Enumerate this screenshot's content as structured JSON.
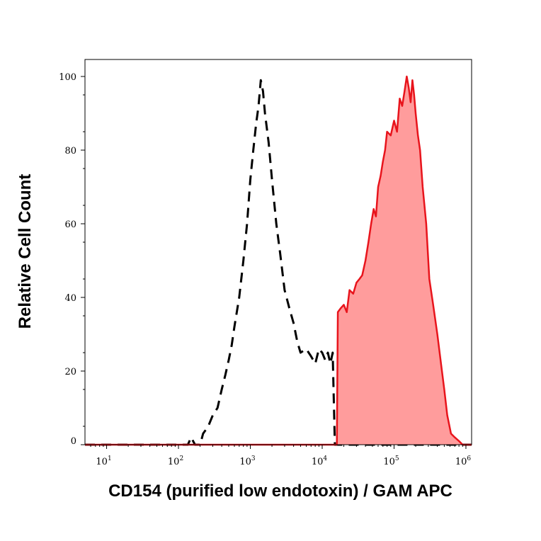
{
  "chart_data": {
    "type": "area",
    "title": "",
    "xlabel": "CD154 (purified low endotoxin) / GAM APC",
    "ylabel": "Relative Cell Count",
    "x_scale": "log",
    "xlim": [
      5,
      1200000
    ],
    "ylim": [
      0,
      105
    ],
    "x_ticks": [
      {
        "base": "10",
        "exp": "1",
        "value": 10
      },
      {
        "base": "10",
        "exp": "2",
        "value": 100
      },
      {
        "base": "10",
        "exp": "3",
        "value": 1000
      },
      {
        "base": "10",
        "exp": "4",
        "value": 10000
      },
      {
        "base": "10",
        "exp": "5",
        "value": 100000
      },
      {
        "base": "10",
        "exp": "6",
        "value": 1000000
      }
    ],
    "y_ticks": [
      {
        "label": "0",
        "value": 0
      },
      {
        "label": "20",
        "value": 20
      },
      {
        "label": "40",
        "value": 40
      },
      {
        "label": "60",
        "value": 60
      },
      {
        "label": "80",
        "value": 80
      },
      {
        "label": "100",
        "value": 100
      }
    ],
    "grid": false,
    "legend": "none",
    "series": [
      {
        "style": "dashed",
        "color": "#000000",
        "fill": "none",
        "points": [
          [
            5,
            0
          ],
          [
            100,
            0
          ],
          [
            135,
            0
          ],
          [
            150,
            2
          ],
          [
            170,
            0
          ],
          [
            200,
            0
          ],
          [
            220,
            3
          ],
          [
            260,
            5
          ],
          [
            300,
            8
          ],
          [
            350,
            10
          ],
          [
            400,
            15
          ],
          [
            450,
            19
          ],
          [
            500,
            23
          ],
          [
            550,
            27
          ],
          [
            600,
            32
          ],
          [
            700,
            40
          ],
          [
            800,
            50
          ],
          [
            900,
            60
          ],
          [
            1000,
            72
          ],
          [
            1100,
            80
          ],
          [
            1200,
            87
          ],
          [
            1300,
            92
          ],
          [
            1400,
            99
          ],
          [
            1500,
            96
          ],
          [
            1600,
            90
          ],
          [
            1800,
            82
          ],
          [
            2000,
            72
          ],
          [
            2300,
            60
          ],
          [
            2600,
            52
          ],
          [
            3000,
            42
          ],
          [
            3500,
            37
          ],
          [
            4000,
            33
          ],
          [
            4500,
            28
          ],
          [
            5000,
            25
          ],
          [
            6000,
            26
          ],
          [
            7000,
            24
          ],
          [
            8000,
            22
          ],
          [
            9000,
            26
          ],
          [
            10000,
            25
          ],
          [
            11000,
            23
          ],
          [
            12000,
            25
          ],
          [
            13000,
            22
          ],
          [
            14000,
            25
          ],
          [
            15000,
            0
          ],
          [
            20000,
            0
          ],
          [
            50000,
            0
          ],
          [
            100000,
            0
          ],
          [
            500000,
            0
          ],
          [
            1000000,
            0
          ],
          [
            1200000,
            0
          ]
        ]
      },
      {
        "style": "solid",
        "color": "#e8141c",
        "fill": "#ff9c9c",
        "points": [
          [
            5,
            0
          ],
          [
            16000,
            0
          ],
          [
            16500,
            36
          ],
          [
            18000,
            37
          ],
          [
            20000,
            38
          ],
          [
            22000,
            36
          ],
          [
            24000,
            42
          ],
          [
            27000,
            41
          ],
          [
            30000,
            44
          ],
          [
            33000,
            45
          ],
          [
            36000,
            46
          ],
          [
            40000,
            50
          ],
          [
            44000,
            55
          ],
          [
            48000,
            60
          ],
          [
            52000,
            64
          ],
          [
            56000,
            62
          ],
          [
            60000,
            70
          ],
          [
            65000,
            73
          ],
          [
            70000,
            77
          ],
          [
            75000,
            80
          ],
          [
            80000,
            85
          ],
          [
            90000,
            84
          ],
          [
            100000,
            88
          ],
          [
            110000,
            85
          ],
          [
            120000,
            94
          ],
          [
            130000,
            92
          ],
          [
            140000,
            96
          ],
          [
            150000,
            100
          ],
          [
            160000,
            97
          ],
          [
            170000,
            93
          ],
          [
            180000,
            99
          ],
          [
            190000,
            95
          ],
          [
            200000,
            90
          ],
          [
            215000,
            84
          ],
          [
            230000,
            80
          ],
          [
            250000,
            70
          ],
          [
            280000,
            60
          ],
          [
            310000,
            45
          ],
          [
            350000,
            38
          ],
          [
            400000,
            30
          ],
          [
            450000,
            22
          ],
          [
            500000,
            15
          ],
          [
            550000,
            8
          ],
          [
            620000,
            3
          ],
          [
            700000,
            2
          ],
          [
            800000,
            1
          ],
          [
            900000,
            0
          ],
          [
            1200000,
            0
          ]
        ]
      }
    ]
  }
}
